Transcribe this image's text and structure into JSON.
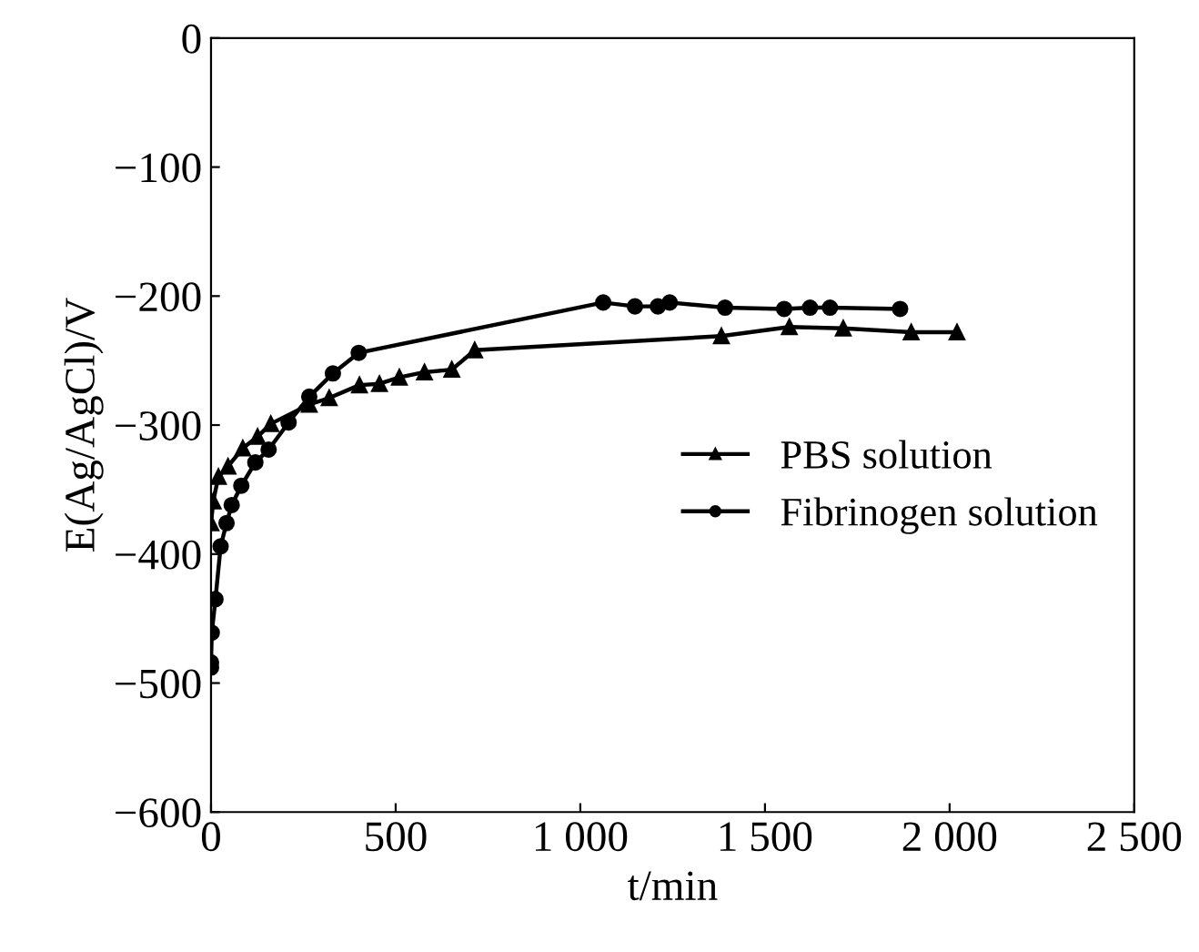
{
  "chart_data": {
    "type": "line",
    "xlabel": "t/min",
    "ylabel": "E(Ag/AgCl)/V",
    "xlim": [
      0,
      2500
    ],
    "ylim": [
      -600,
      0
    ],
    "xticks": [
      0,
      500,
      {
        "value": 1000,
        "label": "1 000"
      },
      {
        "value": 1500,
        "label": "1 500"
      },
      {
        "value": 2000,
        "label": "2 000"
      },
      {
        "value": 2500,
        "label": "2 500"
      }
    ],
    "yticks": [
      {
        "value": -600,
        "label": "−600"
      },
      {
        "value": -500,
        "label": "−500"
      },
      {
        "value": -400,
        "label": "−400"
      },
      {
        "value": -300,
        "label": "−300"
      },
      {
        "value": -200,
        "label": "−200"
      },
      {
        "value": -100,
        "label": "−100"
      },
      0
    ],
    "grid": false,
    "legend": "right",
    "series": [
      {
        "name": "PBS solution",
        "color": "#000000",
        "marker": "triangle",
        "x": [
          0,
          6,
          20,
          46,
          86,
          126,
          162,
          266,
          320,
          402,
          456,
          510,
          578,
          652,
          714,
          1382,
          1566,
          1712,
          1896,
          2020
        ],
        "values": [
          -376,
          -359,
          -340,
          -332,
          -318,
          -309,
          -299,
          -284,
          -279,
          -269,
          -268,
          -263,
          -259,
          -257,
          -242,
          -231,
          -224,
          -225,
          -228,
          -228
        ]
      },
      {
        "name": "Fibrinogen solution",
        "color": "#000000",
        "marker": "circle",
        "x": [
          0,
          0,
          2,
          12,
          26,
          42,
          56,
          82,
          120,
          156,
          210,
          266,
          330,
          400,
          1062,
          1148,
          1210,
          1242,
          1392,
          1552,
          1622,
          1676,
          1866
        ],
        "values": [
          -488,
          -484,
          -461,
          -435,
          -394,
          -376,
          -362,
          -347,
          -329,
          -319,
          -298,
          -278,
          -260,
          -244,
          -205,
          -208,
          -208,
          -205,
          -209,
          -210,
          -209,
          -209,
          -210
        ]
      }
    ]
  }
}
